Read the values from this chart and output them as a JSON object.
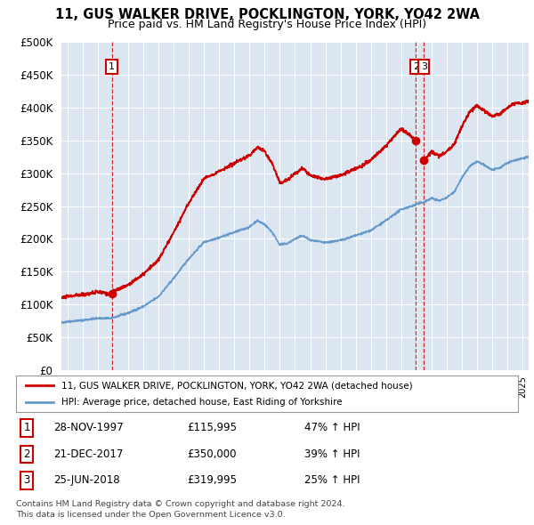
{
  "title": "11, GUS WALKER DRIVE, POCKLINGTON, YORK, YO42 2WA",
  "subtitle": "Price paid vs. HM Land Registry's House Price Index (HPI)",
  "plot_bg_color": "#dce6f1",
  "legend_label_red": "11, GUS WALKER DRIVE, POCKLINGTON, YORK, YO42 2WA (detached house)",
  "legend_label_blue": "HPI: Average price, detached house, East Riding of Yorkshire",
  "transactions": [
    {
      "num": 1,
      "date": "28-NOV-1997",
      "price": 115995,
      "pct": "47% ↑ HPI",
      "year": 1997.92
    },
    {
      "num": 2,
      "date": "21-DEC-2017",
      "price": 350000,
      "pct": "39% ↑ HPI",
      "year": 2017.97
    },
    {
      "num": 3,
      "date": "25-JUN-2018",
      "price": 319995,
      "pct": "25% ↑ HPI",
      "year": 2018.49
    }
  ],
  "footer1": "Contains HM Land Registry data © Crown copyright and database right 2024.",
  "footer2": "This data is licensed under the Open Government Licence v3.0.",
  "ylim": [
    0,
    500000
  ],
  "xlim": [
    1994.6,
    2025.4
  ],
  "red_color": "#cc0000",
  "blue_color": "#6699cc",
  "hpi_segments": [
    [
      1994.5,
      72000
    ],
    [
      1995,
      74000
    ],
    [
      1996,
      76000
    ],
    [
      1997,
      79000
    ],
    [
      1997.92,
      78900
    ],
    [
      1998,
      80000
    ],
    [
      1999,
      87000
    ],
    [
      2000,
      97000
    ],
    [
      2001,
      112000
    ],
    [
      2002,
      140000
    ],
    [
      2003,
      170000
    ],
    [
      2004,
      195000
    ],
    [
      2005,
      202000
    ],
    [
      2006,
      210000
    ],
    [
      2007,
      218000
    ],
    [
      2007.5,
      228000
    ],
    [
      2008,
      222000
    ],
    [
      2008.5,
      210000
    ],
    [
      2009,
      191000
    ],
    [
      2009.5,
      193000
    ],
    [
      2010,
      200000
    ],
    [
      2010.5,
      205000
    ],
    [
      2011,
      198000
    ],
    [
      2012,
      194000
    ],
    [
      2013,
      198000
    ],
    [
      2014,
      205000
    ],
    [
      2015,
      213000
    ],
    [
      2016,
      228000
    ],
    [
      2017,
      245000
    ],
    [
      2017.97,
      252000
    ],
    [
      2018,
      253000
    ],
    [
      2018.49,
      256000
    ],
    [
      2019,
      262000
    ],
    [
      2019.5,
      258000
    ],
    [
      2020,
      263000
    ],
    [
      2020.5,
      272000
    ],
    [
      2021,
      293000
    ],
    [
      2021.5,
      310000
    ],
    [
      2022,
      318000
    ],
    [
      2022.5,
      312000
    ],
    [
      2023,
      305000
    ],
    [
      2023.5,
      308000
    ],
    [
      2024,
      316000
    ],
    [
      2024.5,
      320000
    ],
    [
      2025,
      323000
    ],
    [
      2025.4,
      325000
    ]
  ],
  "red_segments_phase1": [
    [
      1994.5,
      110000
    ],
    [
      1995,
      112000
    ],
    [
      1996,
      115000
    ],
    [
      1997,
      119000
    ],
    [
      1997.92,
      115995
    ],
    [
      1998,
      120000
    ],
    [
      1999,
      130000
    ],
    [
      2000,
      146000
    ],
    [
      2001,
      168000
    ],
    [
      2002,
      210000
    ],
    [
      2003,
      255000
    ],
    [
      2004,
      292000
    ],
    [
      2005,
      303000
    ],
    [
      2006,
      315000
    ],
    [
      2007,
      327000
    ],
    [
      2007.5,
      340000
    ],
    [
      2008,
      333000
    ],
    [
      2008.5,
      315000
    ],
    [
      2009,
      285000
    ],
    [
      2009.5,
      290000
    ],
    [
      2010,
      300000
    ],
    [
      2010.5,
      308000
    ],
    [
      2011,
      297000
    ],
    [
      2012,
      291000
    ],
    [
      2013,
      297000
    ],
    [
      2014,
      307000
    ],
    [
      2015,
      320000
    ],
    [
      2016,
      342000
    ],
    [
      2017,
      368000
    ],
    [
      2017.97,
      350000
    ]
  ],
  "red_segments_phase2": [
    [
      2018.49,
      319995
    ],
    [
      2019,
      333000
    ],
    [
      2019.5,
      326000
    ],
    [
      2020,
      333000
    ],
    [
      2020.5,
      345000
    ],
    [
      2021,
      371000
    ],
    [
      2021.5,
      393000
    ],
    [
      2022,
      403000
    ],
    [
      2022.5,
      395000
    ],
    [
      2023,
      387000
    ],
    [
      2023.5,
      390000
    ],
    [
      2024,
      400000
    ],
    [
      2024.5,
      406000
    ],
    [
      2025,
      407000
    ],
    [
      2025.4,
      410000
    ]
  ]
}
